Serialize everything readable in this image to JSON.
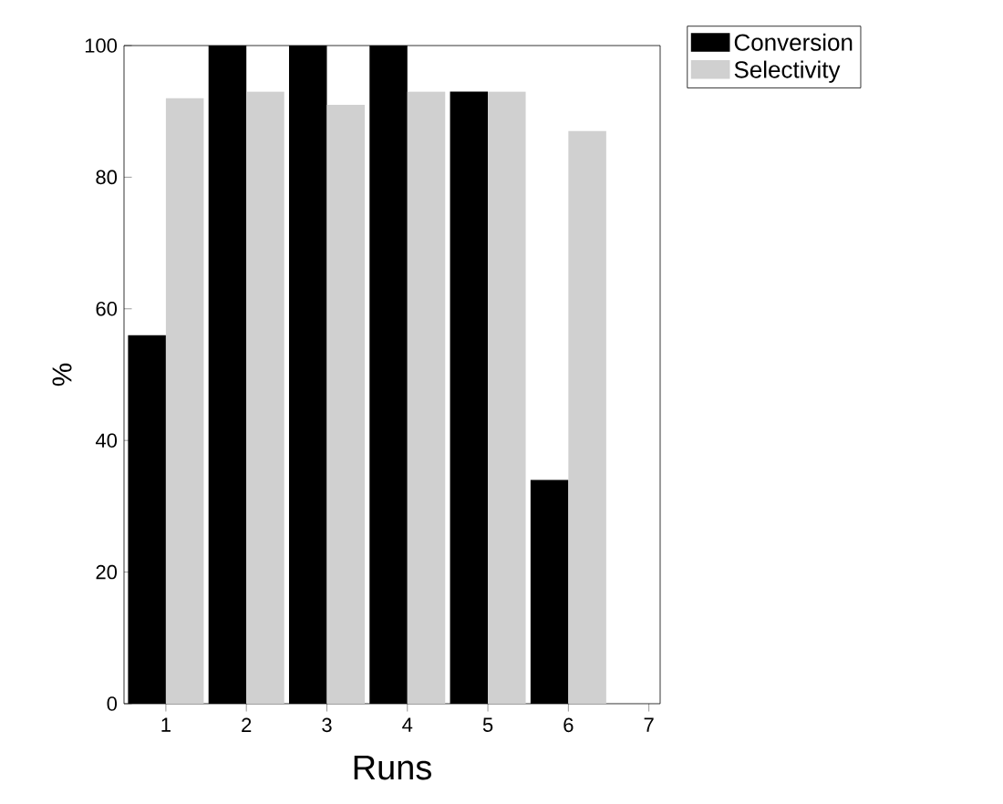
{
  "chart_data": {
    "type": "bar",
    "xlabel": "Runs",
    "ylabel": "%",
    "categories": [
      "1",
      "2",
      "3",
      "4",
      "5",
      "6",
      "7"
    ],
    "series": [
      {
        "name": "Conversion",
        "color": "#000000",
        "values": [
          56,
          100,
          100,
          100,
          93,
          34,
          null
        ]
      },
      {
        "name": "Selectivity",
        "color": "#d0d0d0",
        "values": [
          92,
          93,
          91,
          93,
          93,
          87,
          null
        ]
      }
    ],
    "ylim": [
      0,
      100
    ],
    "yticks": [
      0,
      20,
      40,
      60,
      80,
      100
    ],
    "grid": false,
    "legend": "top right"
  }
}
